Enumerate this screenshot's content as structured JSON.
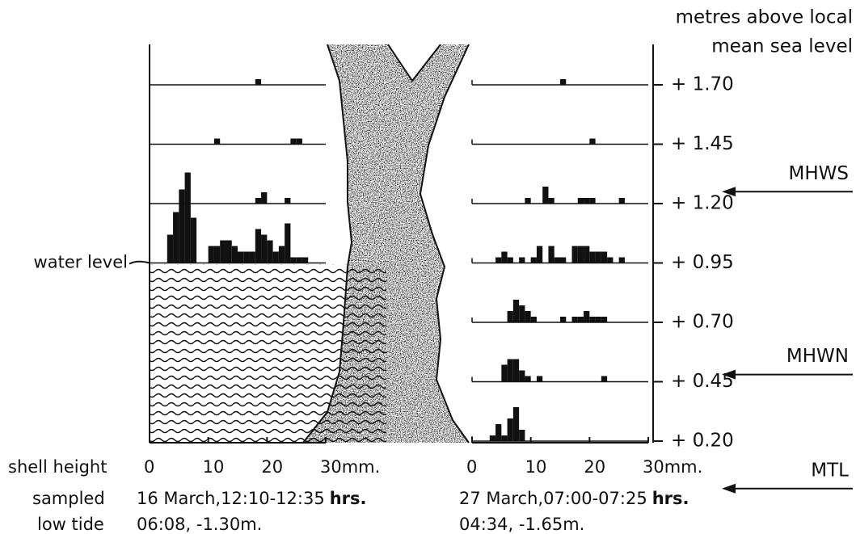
{
  "chart_data": {
    "type": "histogram",
    "y_axis_label": [
      "metres above local",
      "mean sea level"
    ],
    "ylim": [
      0.2,
      1.87
    ],
    "yticks": [
      {
        "value": 1.7,
        "label": "+ 1.70"
      },
      {
        "value": 1.45,
        "label": "+ 1.45"
      },
      {
        "value": 1.2,
        "label": "+ 1.20"
      },
      {
        "value": 0.95,
        "label": "+ 0.95"
      },
      {
        "value": 0.7,
        "label": "+ 0.70"
      },
      {
        "value": 0.45,
        "label": "+ 0.45"
      },
      {
        "value": 0.2,
        "label": "+ 0.20"
      }
    ],
    "x_axis_label": "shell height",
    "xlim": [
      0,
      30
    ],
    "xticks": [
      0,
      10,
      20,
      {
        "value": 30,
        "label": "30mm."
      }
    ],
    "bins": [
      0,
      1,
      2,
      3,
      4,
      5,
      6,
      7,
      8,
      9,
      10,
      11,
      12,
      13,
      14,
      15,
      16,
      17,
      18,
      19,
      20,
      21,
      22,
      23,
      24,
      25,
      26,
      27,
      28,
      29,
      30
    ],
    "color": "#111111",
    "row_labels": {
      "sampled": "sampled",
      "low_tide": "low tide"
    },
    "panels": [
      {
        "sampled": "16 March,12:10-12:35",
        "sampled_unit": "hrs.",
        "low_tide": "06:08, -1.30m.",
        "histograms": [
          {
            "level": 1.7,
            "counts": [
              0,
              0,
              0,
              0,
              0,
              0,
              0,
              0,
              0,
              0,
              0,
              0,
              0,
              0,
              0,
              0,
              0,
              0,
              1,
              0,
              0,
              0,
              0,
              0,
              0,
              0,
              0,
              0,
              0,
              0
            ]
          },
          {
            "level": 1.45,
            "counts": [
              0,
              0,
              0,
              0,
              0,
              0,
              0,
              0,
              0,
              0,
              0,
              1,
              0,
              0,
              0,
              0,
              0,
              0,
              0,
              0,
              0,
              0,
              0,
              0,
              1,
              1,
              0,
              0,
              0,
              0
            ]
          },
          {
            "level": 1.2,
            "counts": [
              0,
              0,
              0,
              0,
              0,
              0,
              0,
              0,
              0,
              0,
              0,
              0,
              0,
              0,
              0,
              0,
              0,
              0,
              1,
              2,
              0,
              0,
              0,
              1,
              0,
              0,
              0,
              0,
              0,
              0
            ]
          },
          {
            "level": 0.95,
            "counts": [
              0,
              0,
              0,
              5,
              9,
              13,
              16,
              8,
              0,
              0,
              3,
              3,
              4,
              4,
              3,
              2,
              2,
              2,
              6,
              5,
              4,
              2,
              3,
              7,
              1,
              1,
              1,
              0,
              0,
              0
            ]
          }
        ]
      },
      {
        "sampled": "27 March,07:00-07:25",
        "sampled_unit": "hrs.",
        "low_tide": "04:34, -1.65m.",
        "histograms": [
          {
            "level": 1.7,
            "counts": [
              0,
              0,
              0,
              0,
              0,
              0,
              0,
              0,
              0,
              0,
              0,
              0,
              0,
              0,
              0,
              1,
              0,
              0,
              0,
              0,
              0,
              0,
              0,
              0,
              0,
              0,
              0,
              0,
              0,
              0
            ]
          },
          {
            "level": 1.45,
            "counts": [
              0,
              0,
              0,
              0,
              0,
              0,
              0,
              0,
              0,
              0,
              0,
              0,
              0,
              0,
              0,
              0,
              0,
              0,
              0,
              0,
              1,
              0,
              0,
              0,
              0,
              0,
              0,
              0,
              0,
              0
            ]
          },
          {
            "level": 1.2,
            "counts": [
              0,
              0,
              0,
              0,
              0,
              0,
              0,
              0,
              0,
              1,
              0,
              0,
              3,
              1,
              0,
              0,
              0,
              0,
              1,
              1,
              1,
              0,
              0,
              0,
              0,
              1,
              0,
              0,
              0,
              0
            ]
          },
          {
            "level": 0.95,
            "counts": [
              0,
              0,
              0,
              0,
              1,
              2,
              1,
              0,
              1,
              0,
              1,
              3,
              0,
              3,
              1,
              1,
              0,
              3,
              3,
              3,
              2,
              2,
              2,
              1,
              0,
              1,
              0,
              0,
              0,
              0
            ]
          },
          {
            "level": 0.7,
            "counts": [
              0,
              0,
              0,
              0,
              0,
              0,
              2,
              4,
              3,
              2,
              1,
              0,
              0,
              0,
              0,
              1,
              0,
              1,
              1,
              2,
              1,
              1,
              1,
              0,
              0,
              0,
              0,
              0,
              0,
              0
            ]
          },
          {
            "level": 0.45,
            "counts": [
              0,
              0,
              0,
              0,
              0,
              3,
              4,
              4,
              2,
              1,
              0,
              1,
              0,
              0,
              0,
              0,
              0,
              0,
              0,
              0,
              0,
              0,
              1,
              0,
              0,
              0,
              0,
              0,
              0,
              0
            ]
          },
          {
            "level": 0.2,
            "counts": [
              0,
              0,
              0,
              1,
              3,
              1,
              4,
              6,
              2,
              0,
              0,
              0,
              0,
              0,
              0,
              0,
              0,
              0,
              0,
              0,
              0,
              0,
              0,
              0,
              0,
              0,
              0,
              0,
              0,
              0
            ]
          }
        ]
      }
    ],
    "annotations": [
      {
        "text": "water level",
        "value": 0.95,
        "side": "left"
      },
      {
        "text": "MHWS",
        "value": 1.25,
        "side": "right"
      },
      {
        "text": "MHWN",
        "value": 0.48,
        "side": "right"
      },
      {
        "text": "MTL",
        "value": 0.0,
        "side": "right"
      }
    ]
  }
}
